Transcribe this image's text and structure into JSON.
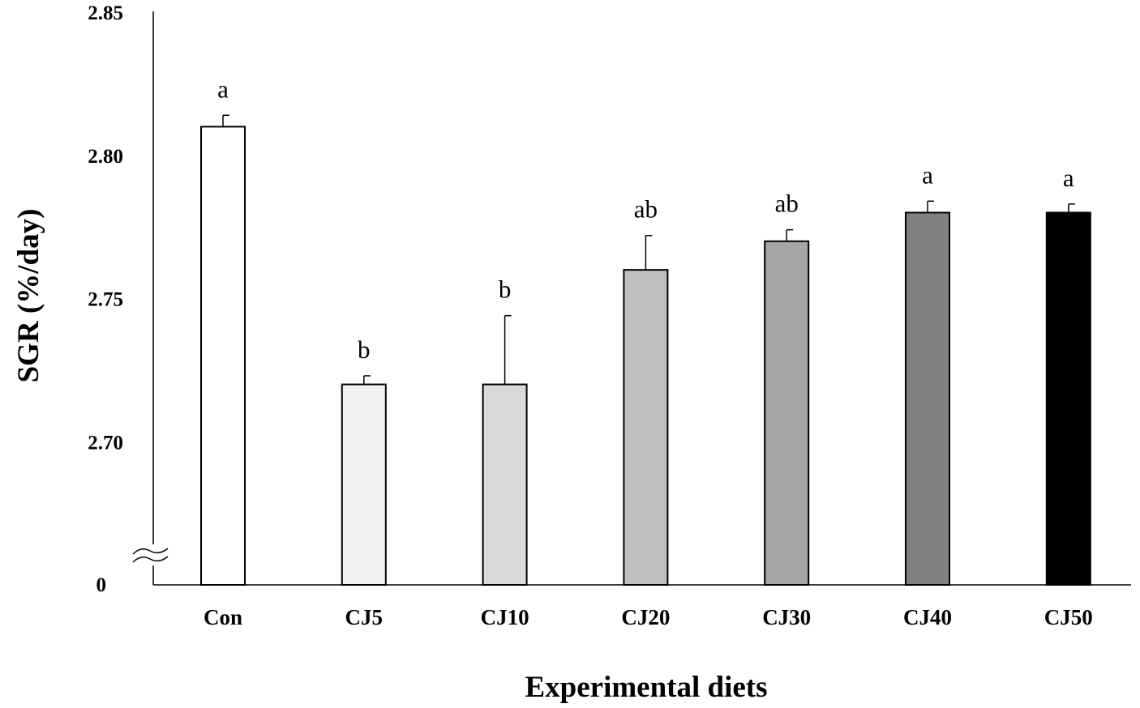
{
  "chart_data": {
    "type": "bar",
    "title": "",
    "xlabel": "Experimental diets",
    "ylabel": "SGR (%/day)",
    "ylim": [
      2.65,
      2.85
    ],
    "axis_break": true,
    "bottom_tick_label": "0",
    "yticks": [
      2.7,
      2.75,
      2.8,
      2.85
    ],
    "ytick_labels": [
      "2.70",
      "2.75",
      "2.80",
      "2.85"
    ],
    "grid": false,
    "categories": [
      "Con",
      "CJ5",
      "CJ10",
      "CJ20",
      "CJ30",
      "CJ40",
      "CJ50"
    ],
    "values": [
      2.81,
      2.72,
      2.72,
      2.76,
      2.77,
      2.78,
      2.78
    ],
    "errors": [
      0.004,
      0.003,
      0.024,
      0.012,
      0.004,
      0.004,
      0.003
    ],
    "significance": [
      "a",
      "b",
      "b",
      "ab",
      "ab",
      "a",
      "a"
    ],
    "colors": [
      "#ffffff",
      "#f2f2f2",
      "#d9d9d9",
      "#bfbfbf",
      "#a6a6a6",
      "#808080",
      "#000000"
    ]
  }
}
